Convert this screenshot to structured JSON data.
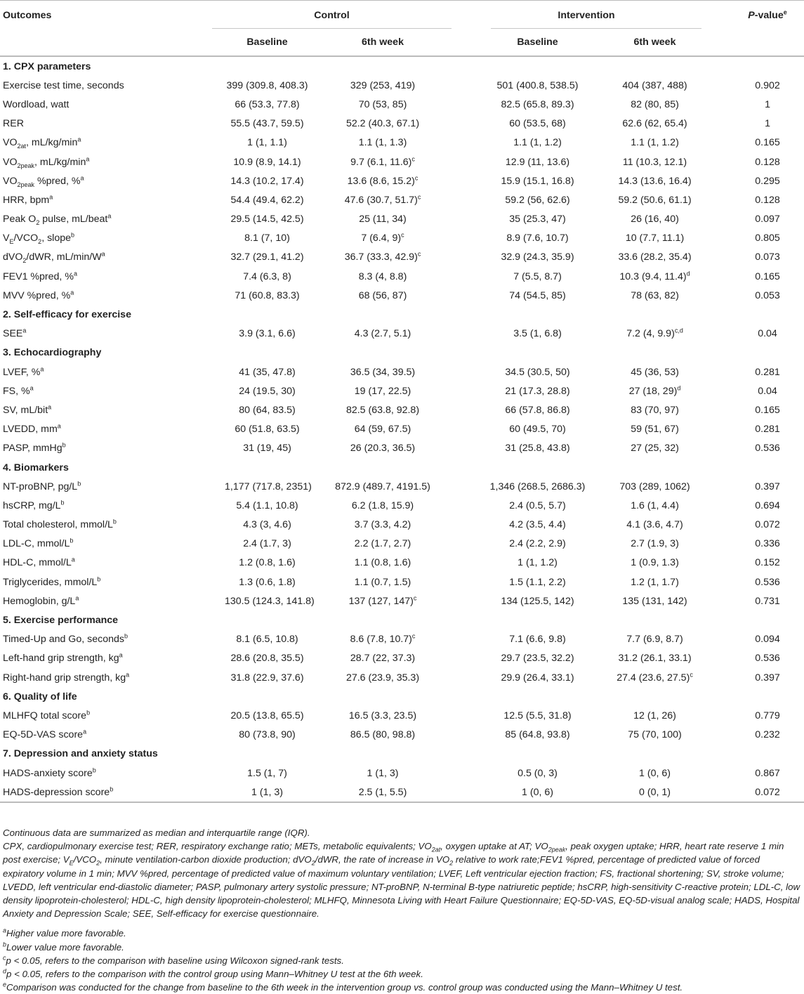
{
  "header": {
    "outcomes": "Outcomes",
    "control": "Control",
    "intervention": "Intervention",
    "pvalue_main": "P",
    "pvalue_rest": "-value",
    "pvalue_sup": "e",
    "baseline": "Baseline",
    "week6": "6th week"
  },
  "sections": [
    {
      "title": "1. CPX parameters",
      "rows": [
        {
          "label": "Exercise test time, seconds",
          "values": [
            "399 (309.8, 408.3)",
            "329 (253, 419)",
            "501 (400.8, 538.5)",
            "404 (387, 488)",
            "0.902"
          ]
        },
        {
          "label": "Wordload, watt",
          "values": [
            "66 (53.3, 77.8)",
            "70 (53, 85)",
            "82.5 (65.8, 89.3)",
            "82 (80, 85)",
            "1"
          ]
        },
        {
          "label": "RER",
          "values": [
            "55.5 (43.7, 59.5)",
            "52.2 (40.3, 67.1)",
            "60 (53.5, 68)",
            "62.6 (62, 65.4)",
            "1"
          ]
        },
        {
          "label": "VO",
          "lsub": "2at",
          "lafter": ", mL/kg/min",
          "lsup": "a",
          "values": [
            "1 (1, 1.1)",
            "1.1 (1, 1.3)",
            "1.1 (1, 1.2)",
            "1.1 (1, 1.2)",
            "0.165"
          ]
        },
        {
          "label": "VO",
          "lsub": "2peak",
          "lafter": ", mL/kg/min",
          "lsup": "a",
          "values": [
            "10.9 (8.9, 14.1)",
            "9.7 (6.1, 11.6)",
            "12.9 (11, 13.6)",
            "11 (10.3, 12.1)",
            "0.128"
          ],
          "sups": [
            "",
            "c",
            "",
            "",
            ""
          ]
        },
        {
          "label": "VO",
          "lsub": "2peak",
          "lafter": " %pred, %",
          "lsup": "a",
          "values": [
            "14.3 (10.2, 17.4)",
            "13.6 (8.6, 15.2)",
            "15.9 (15.1, 16.8)",
            "14.3 (13.6, 16.4)",
            "0.295"
          ],
          "sups": [
            "",
            "c",
            "",
            "",
            ""
          ]
        },
        {
          "label": "HRR, bpm",
          "lsup": "a",
          "values": [
            "54.4 (49.4, 62.2)",
            "47.6 (30.7, 51.7)",
            "59.2 (56, 62.6)",
            "59.2 (50.6, 61.1)",
            "0.128"
          ],
          "sups": [
            "",
            "c",
            "",
            "",
            ""
          ]
        },
        {
          "label": "Peak O",
          "lsub": "2",
          "lafter": " pulse, mL/beat",
          "lsup": "a",
          "values": [
            "29.5 (14.5, 42.5)",
            "25 (11, 34)",
            "35 (25.3, 47)",
            "26 (16, 40)",
            "0.097"
          ]
        },
        {
          "label": "V",
          "lsub": "E",
          "lafter": "/VCO",
          "lsub2": "2",
          "lafter2": ", slope",
          "lsup": "b",
          "values": [
            "8.1 (7, 10)",
            "7 (6.4, 9)",
            "8.9 (7.6, 10.7)",
            "10 (7.7, 11.1)",
            "0.805"
          ],
          "sups": [
            "",
            "c",
            "",
            "",
            ""
          ]
        },
        {
          "label": "dVO",
          "lsub": "2",
          "lafter": "/dWR, mL/min/W",
          "lsup": "a",
          "values": [
            "32.7 (29.1, 41.2)",
            "36.7 (33.3, 42.9)",
            "32.9 (24.3, 35.9)",
            "33.6 (28.2, 35.4)",
            "0.073"
          ],
          "sups": [
            "",
            "c",
            "",
            "",
            ""
          ]
        },
        {
          "label": "FEV1 %pred, %",
          "lsup": "a",
          "values": [
            "7.4 (6.3, 8)",
            "8.3 (4, 8.8)",
            "7 (5.5, 8.7)",
            "10.3 (9.4, 11.4)",
            "0.165"
          ],
          "sups": [
            "",
            "",
            "",
            "d",
            ""
          ]
        },
        {
          "label": "MVV %pred, %",
          "lsup": "a",
          "values": [
            "71 (60.8, 83.3)",
            "68 (56, 87)",
            "74 (54.5, 85)",
            "78 (63, 82)",
            "0.053"
          ]
        }
      ]
    },
    {
      "title": "2. Self-efficacy for exercise",
      "rows": [
        {
          "label": "SEE",
          "lsup": "a",
          "values": [
            "3.9 (3.1, 6.6)",
            "4.3 (2.7, 5.1)",
            "3.5 (1, 6.8)",
            "7.2 (4, 9.9)",
            "0.04"
          ],
          "sups": [
            "",
            "",
            "",
            "c,d",
            ""
          ]
        }
      ]
    },
    {
      "title": "3. Echocardiography",
      "rows": [
        {
          "label": "LVEF, %",
          "lsup": "a",
          "values": [
            "41 (35, 47.8)",
            "36.5 (34, 39.5)",
            "34.5 (30.5, 50)",
            "45 (36, 53)",
            "0.281"
          ]
        },
        {
          "label": "FS, %",
          "lsup": "a",
          "values": [
            "24 (19.5, 30)",
            "19 (17, 22.5)",
            "21 (17.3, 28.8)",
            "27 (18, 29)",
            "0.04"
          ],
          "sups": [
            "",
            "",
            "",
            "d",
            ""
          ]
        },
        {
          "label": "SV, mL/bit",
          "lsup": "a",
          "values": [
            "80 (64, 83.5)",
            "82.5 (63.8, 92.8)",
            "66 (57.8, 86.8)",
            "83 (70, 97)",
            "0.165"
          ]
        },
        {
          "label": "LVEDD, mm",
          "lsup": "a",
          "values": [
            "60 (51.8, 63.5)",
            "64 (59, 67.5)",
            "60 (49.5, 70)",
            "59 (51, 67)",
            "0.281"
          ]
        },
        {
          "label": "PASP, mmHg",
          "lsup": "b",
          "values": [
            "31 (19, 45)",
            "26 (20.3, 36.5)",
            "31 (25.8, 43.8)",
            "27 (25, 32)",
            "0.536"
          ]
        }
      ]
    },
    {
      "title": "4. Biomarkers",
      "rows": [
        {
          "label": "NT-proBNP, pg/L",
          "lsup": "b",
          "values": [
            "1,177 (717.8, 2351)",
            "872.9 (489.7, 4191.5)",
            "1,346 (268.5, 2686.3)",
            "703 (289, 1062)",
            "0.397"
          ]
        },
        {
          "label": "hsCRP, mg/L",
          "lsup": "b",
          "values": [
            "5.4 (1.1, 10.8)",
            "6.2 (1.8, 15.9)",
            "2.4 (0.5, 5.7)",
            "1.6 (1, 4.4)",
            "0.694"
          ]
        },
        {
          "label": "Total cholesterol, mmol/L",
          "lsup": "b",
          "values": [
            "4.3 (3, 4.6)",
            "3.7 (3.3, 4.2)",
            "4.2 (3.5, 4.4)",
            "4.1 (3.6, 4.7)",
            "0.072"
          ]
        },
        {
          "label": "LDL-C, mmol/L",
          "lsup": "b",
          "values": [
            "2.4 (1.7, 3)",
            "2.2 (1.7, 2.7)",
            "2.4 (2.2, 2.9)",
            "2.7 (1.9, 3)",
            "0.336"
          ]
        },
        {
          "label": "HDL-C, mmol/L",
          "lsup": "a",
          "values": [
            "1.2 (0.8, 1.6)",
            "1.1 (0.8, 1.6)",
            "1 (1, 1.2)",
            "1 (0.9, 1.3)",
            "0.152"
          ]
        },
        {
          "label": "Triglycerides, mmol/L",
          "lsup": "b",
          "values": [
            "1.3 (0.6, 1.8)",
            "1.1 (0.7, 1.5)",
            "1.5 (1.1, 2.2)",
            "1.2 (1, 1.7)",
            "0.536"
          ]
        },
        {
          "label": "Hemoglobin, g/L",
          "lsup": "a",
          "values": [
            "130.5 (124.3, 141.8)",
            "137 (127, 147)",
            "134 (125.5, 142)",
            "135 (131, 142)",
            "0.731"
          ],
          "sups": [
            "",
            "c",
            "",
            "",
            ""
          ]
        }
      ]
    },
    {
      "title": "5. Exercise performance",
      "rows": [
        {
          "label": "Timed-Up and Go, seconds",
          "lsup": "b",
          "values": [
            "8.1 (6.5, 10.8)",
            "8.6 (7.8, 10.7)",
            "7.1 (6.6, 9.8)",
            "7.7 (6.9, 8.7)",
            "0.094"
          ],
          "sups": [
            "",
            "c",
            "",
            "",
            ""
          ]
        },
        {
          "label": "Left-hand grip strength, kg",
          "lsup": "a",
          "values": [
            "28.6 (20.8, 35.5)",
            "28.7 (22, 37.3)",
            "29.7 (23.5, 32.2)",
            "31.2 (26.1, 33.1)",
            "0.536"
          ]
        },
        {
          "label": "Right-hand grip strength, kg",
          "lsup": "a",
          "values": [
            "31.8 (22.9, 37.6)",
            "27.6 (23.9, 35.3)",
            "29.9 (26.4, 33.1)",
            "27.4 (23.6, 27.5)",
            "0.397"
          ],
          "sups": [
            "",
            "",
            "",
            "c",
            ""
          ]
        }
      ]
    },
    {
      "title": "6. Quality of life",
      "rows": [
        {
          "label": "MLHFQ total score",
          "lsup": "b",
          "values": [
            "20.5 (13.8, 65.5)",
            "16.5 (3.3, 23.5)",
            "12.5 (5.5, 31.8)",
            "12 (1, 26)",
            "0.779"
          ]
        },
        {
          "label": "EQ-5D-VAS score",
          "lsup": "a",
          "values": [
            "80 (73.8, 90)",
            "86.5 (80, 98.8)",
            "85 (64.8, 93.8)",
            "75 (70, 100)",
            "0.232"
          ]
        }
      ]
    },
    {
      "title": "7. Depression and anxiety status",
      "rows": [
        {
          "label": "HADS-anxiety score",
          "lsup": "b",
          "values": [
            "1.5 (1, 7)",
            "1 (1, 3)",
            "0.5 (0, 3)",
            "1 (0, 6)",
            "0.867"
          ]
        },
        {
          "label": "HADS-depression score",
          "lsup": "b",
          "values": [
            "1 (1, 3)",
            "2.5 (1, 5.5)",
            "1 (0, 6)",
            "0 (0, 1)",
            "0.072"
          ]
        }
      ]
    }
  ],
  "notes": {
    "summary": "Continuous data are summarized as median and interquartile range (IQR).",
    "abbrev_html": "CPX, cardiopulmonary exercise test; RER, respiratory exchange ratio; METs, metabolic equivalents; VO<sub>2at</sub>, oxygen uptake at AT; VO<sub>2peak</sub>, peak oxygen uptake; HRR, heart rate reserve 1 min post exercise; V<sub>E</sub>/VCO<sub>2</sub>, minute ventilation-carbon dioxide production; dVO<sub>2</sub>/dWR, the rate of increase in VO<sub>2</sub> relative to work rate;FEV1 %pred, percentage of predicted value of forced expiratory volume in 1 min; MVV %pred, percentage of predicted value of maximum voluntary ventilation; LVEF, Left ventricular ejection fraction; FS, fractional shortening; SV, stroke volume; LVEDD, left ventricular end-diastolic diameter; PASP, pulmonary artery systolic pressure; NT-proBNP, N-terminal B-type natriuretic peptide; hsCRP, high-sensitivity C-reactive protein; LDL-C, low density lipoprotein-cholesterol; HDL-C, high density lipoprotein-cholesterol; MLHFQ, Minnesota Living with Heart Failure Questionnaire; EQ-5D-VAS, EQ-5D-visual analog scale; HADS, Hospital Anxiety and Depression Scale; SEE, Self-efficacy for exercise questionnaire.",
    "footnotes": [
      {
        "mark": "a",
        "text": "Higher value more favorable."
      },
      {
        "mark": "b",
        "text": "Lower value more favorable."
      },
      {
        "mark": "c",
        "text": "p < 0.05, refers to the comparison with baseline using Wilcoxon signed-rank tests."
      },
      {
        "mark": "d",
        "text": "p < 0.05, refers to the comparison with the control group using Mann–Whitney U test at the 6th week."
      },
      {
        "mark": "e",
        "text": "Comparison was conducted for the change from baseline to the 6th week in the intervention group vs. control group was conducted using the Mann–Whitney U test."
      }
    ]
  }
}
